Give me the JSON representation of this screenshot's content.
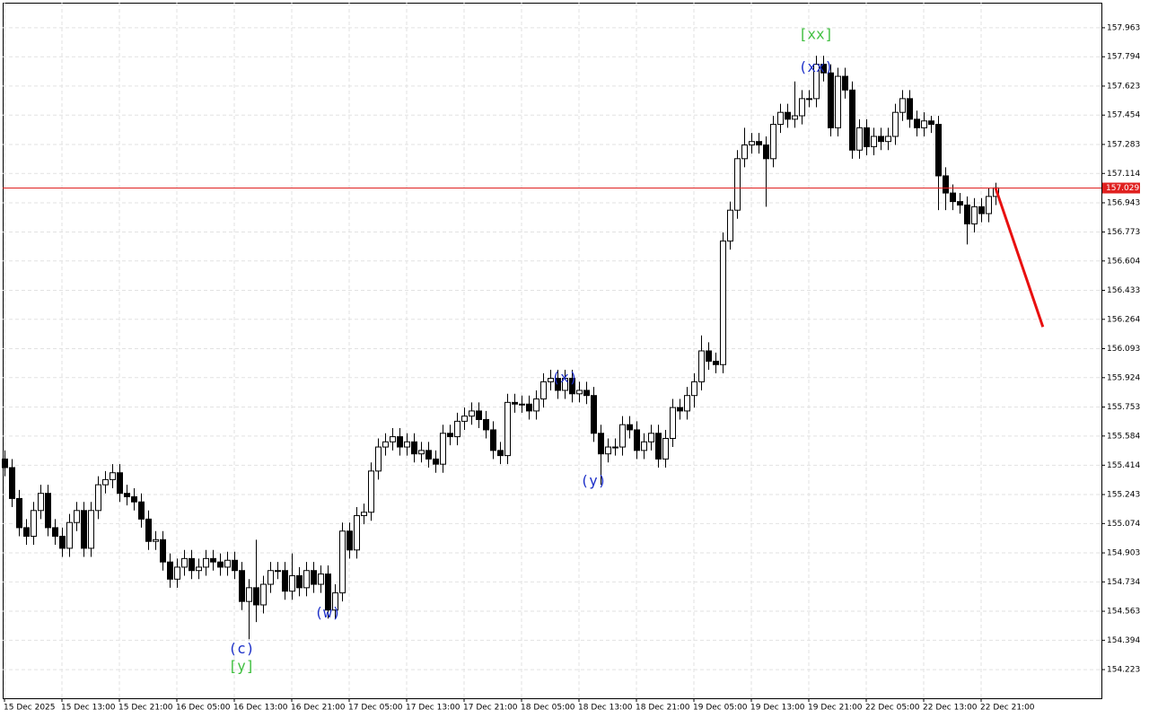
{
  "chart_data": {
    "type": "candlestick",
    "ylim": [
      154.056,
      158.109
    ],
    "yticks": [
      157.963,
      157.794,
      157.623,
      157.454,
      157.283,
      157.114,
      156.943,
      156.773,
      156.604,
      156.433,
      156.264,
      156.093,
      155.924,
      155.753,
      155.584,
      155.414,
      155.243,
      155.074,
      154.903,
      154.734,
      154.563,
      154.394,
      154.223
    ],
    "grid": true,
    "up_color": "#ffffff",
    "down_color": "#000000",
    "outline_color": "#000000",
    "categories": [
      "15 Dec 2025",
      null,
      null,
      null,
      null,
      null,
      null,
      null,
      "15 Dec 13:00",
      null,
      null,
      null,
      null,
      null,
      null,
      null,
      "15 Dec 21:00",
      null,
      null,
      null,
      null,
      null,
      null,
      null,
      "16 Dec 05:00",
      null,
      null,
      null,
      null,
      null,
      null,
      null,
      "16 Dec 13:00",
      null,
      null,
      null,
      null,
      null,
      null,
      null,
      "16 Dec 21:00",
      null,
      null,
      null,
      null,
      null,
      null,
      null,
      "17 Dec 05:00",
      null,
      null,
      null,
      null,
      null,
      null,
      null,
      "17 Dec 13:00",
      null,
      null,
      null,
      null,
      null,
      null,
      null,
      "17 Dec 21:00",
      null,
      null,
      null,
      null,
      null,
      null,
      null,
      "18 Dec 05:00",
      null,
      null,
      null,
      null,
      null,
      null,
      null,
      "18 Dec 13:00",
      null,
      null,
      null,
      null,
      null,
      null,
      null,
      "18 Dec 21:00",
      null,
      null,
      null,
      null,
      null,
      null,
      null,
      "19 Dec 05:00",
      null,
      null,
      null,
      null,
      null,
      null,
      null,
      "19 Dec 13:00",
      null,
      null,
      null,
      null,
      null,
      null,
      null,
      "19 Dec 21:00",
      null,
      null,
      null,
      null,
      null,
      null,
      null,
      "22 Dec 05:00",
      null,
      null,
      null,
      null,
      null,
      null,
      null,
      "22 Dec 13:00",
      null,
      null,
      null,
      null,
      null,
      null,
      null,
      "22 Dec 21:00",
      null,
      null
    ],
    "open": [
      155.45,
      155.4,
      155.22,
      155.05,
      155.0,
      155.15,
      155.25,
      155.05,
      155.0,
      154.93,
      155.08,
      155.15,
      154.93,
      155.15,
      155.3,
      155.33,
      155.37,
      155.25,
      155.23,
      155.2,
      155.1,
      154.97,
      154.98,
      154.85,
      154.75,
      154.82,
      154.87,
      154.8,
      154.82,
      154.87,
      154.85,
      154.82,
      154.86,
      154.8,
      154.62,
      154.7,
      154.6,
      154.72,
      154.8,
      154.8,
      154.68,
      154.77,
      154.7,
      154.8,
      154.72,
      154.78,
      154.57,
      154.67,
      155.03,
      154.92,
      155.12,
      155.14,
      155.38,
      155.52,
      155.55,
      155.58,
      155.52,
      155.55,
      155.48,
      155.5,
      155.45,
      155.42,
      155.6,
      155.58,
      155.67,
      155.7,
      155.73,
      155.68,
      155.62,
      155.5,
      155.47,
      155.78,
      155.77,
      155.77,
      155.73,
      155.8,
      155.9,
      155.92,
      155.85,
      155.92,
      155.83,
      155.85,
      155.82,
      155.6,
      155.48,
      155.52,
      155.52,
      155.65,
      155.62,
      155.5,
      155.55,
      155.6,
      155.45,
      155.57,
      155.75,
      155.73,
      155.82,
      155.9,
      156.08,
      156.02,
      156.0,
      156.72,
      156.9,
      157.2,
      157.28,
      157.3,
      157.28,
      157.2,
      157.4,
      157.47,
      157.43,
      157.45,
      157.55,
      157.55,
      157.75,
      157.7,
      157.38,
      157.68,
      157.6,
      157.25,
      157.38,
      157.27,
      157.33,
      157.3,
      157.33,
      157.47,
      157.55,
      157.43,
      157.38,
      157.42,
      157.4,
      157.1,
      157.0,
      156.95,
      156.93,
      156.82,
      156.92,
      156.88,
      156.98
    ],
    "high": [
      155.5,
      155.45,
      155.27,
      155.1,
      155.2,
      155.3,
      155.3,
      155.1,
      155.05,
      155.13,
      155.2,
      155.2,
      155.2,
      155.35,
      155.38,
      155.42,
      155.42,
      155.3,
      155.28,
      155.25,
      155.15,
      155.03,
      155.03,
      154.9,
      154.87,
      154.92,
      154.92,
      154.87,
      154.92,
      154.92,
      154.9,
      154.91,
      154.91,
      154.85,
      154.75,
      154.98,
      154.77,
      154.85,
      154.85,
      154.85,
      154.9,
      154.82,
      154.85,
      154.85,
      154.83,
      154.83,
      154.72,
      155.08,
      155.08,
      155.17,
      155.19,
      155.43,
      155.57,
      155.6,
      155.63,
      155.63,
      155.6,
      155.6,
      155.55,
      155.55,
      155.5,
      155.65,
      155.65,
      155.72,
      155.75,
      155.78,
      155.78,
      155.73,
      155.67,
      155.55,
      155.83,
      155.83,
      155.82,
      155.82,
      155.85,
      155.95,
      155.97,
      155.97,
      155.97,
      155.97,
      155.9,
      155.9,
      155.87,
      155.65,
      155.57,
      155.57,
      155.7,
      155.7,
      155.67,
      155.6,
      155.65,
      155.65,
      155.62,
      155.8,
      155.8,
      155.87,
      155.95,
      156.17,
      156.13,
      156.07,
      156.77,
      156.95,
      157.25,
      157.38,
      157.35,
      157.35,
      157.33,
      157.45,
      157.52,
      157.52,
      157.65,
      157.6,
      157.6,
      157.8,
      157.8,
      157.75,
      157.73,
      157.73,
      157.65,
      157.43,
      157.43,
      157.38,
      157.38,
      157.38,
      157.52,
      157.6,
      157.6,
      157.48,
      157.47,
      157.45,
      157.45,
      157.15,
      157.05,
      157.0,
      156.98,
      156.97,
      156.97,
      157.03,
      157.06
    ],
    "low": [
      155.35,
      155.17,
      155.0,
      154.95,
      154.95,
      155.1,
      155.0,
      154.95,
      154.88,
      154.88,
      155.03,
      154.88,
      154.88,
      155.1,
      155.25,
      155.28,
      155.2,
      155.18,
      155.15,
      155.05,
      154.92,
      154.92,
      154.8,
      154.7,
      154.7,
      154.77,
      154.75,
      154.75,
      154.77,
      154.8,
      154.77,
      154.77,
      154.75,
      154.57,
      154.4,
      154.5,
      154.55,
      154.67,
      154.75,
      154.63,
      154.63,
      154.65,
      154.65,
      154.67,
      154.67,
      154.52,
      154.52,
      154.62,
      154.87,
      154.87,
      155.07,
      155.09,
      155.33,
      155.47,
      155.5,
      155.47,
      155.47,
      155.43,
      155.43,
      155.4,
      155.37,
      155.37,
      155.53,
      155.53,
      155.62,
      155.65,
      155.63,
      155.57,
      155.45,
      155.42,
      155.42,
      155.72,
      155.72,
      155.68,
      155.68,
      155.75,
      155.85,
      155.8,
      155.8,
      155.78,
      155.78,
      155.77,
      155.55,
      155.3,
      155.43,
      155.47,
      155.47,
      155.57,
      155.45,
      155.45,
      155.5,
      155.4,
      155.4,
      155.52,
      155.68,
      155.68,
      155.75,
      155.85,
      155.97,
      155.95,
      155.95,
      156.67,
      156.85,
      157.15,
      157.23,
      157.23,
      156.92,
      157.15,
      157.35,
      157.38,
      157.38,
      157.4,
      157.5,
      157.5,
      157.65,
      157.33,
      157.33,
      157.55,
      157.2,
      157.2,
      157.22,
      157.22,
      157.25,
      157.25,
      157.28,
      157.42,
      157.38,
      157.33,
      157.33,
      157.35,
      156.9,
      156.9,
      156.9,
      156.88,
      156.7,
      156.77,
      156.83,
      156.83,
      156.93
    ],
    "close": [
      155.4,
      155.22,
      155.05,
      155.0,
      155.15,
      155.25,
      155.05,
      155.0,
      154.93,
      155.08,
      155.15,
      154.93,
      155.15,
      155.3,
      155.33,
      155.37,
      155.25,
      155.23,
      155.2,
      155.1,
      154.97,
      154.98,
      154.85,
      154.75,
      154.82,
      154.87,
      154.8,
      154.82,
      154.87,
      154.85,
      154.82,
      154.86,
      154.8,
      154.62,
      154.7,
      154.6,
      154.72,
      154.8,
      154.8,
      154.68,
      154.77,
      154.7,
      154.8,
      154.72,
      154.78,
      154.57,
      154.67,
      155.03,
      154.92,
      155.12,
      155.14,
      155.38,
      155.52,
      155.55,
      155.58,
      155.52,
      155.55,
      155.48,
      155.5,
      155.45,
      155.42,
      155.6,
      155.58,
      155.67,
      155.7,
      155.73,
      155.68,
      155.62,
      155.5,
      155.47,
      155.78,
      155.77,
      155.77,
      155.73,
      155.8,
      155.9,
      155.92,
      155.85,
      155.92,
      155.83,
      155.85,
      155.82,
      155.6,
      155.48,
      155.52,
      155.52,
      155.65,
      155.62,
      155.5,
      155.55,
      155.6,
      155.45,
      155.57,
      155.75,
      155.73,
      155.82,
      155.9,
      156.08,
      156.02,
      156.0,
      156.72,
      156.9,
      157.2,
      157.28,
      157.3,
      157.28,
      157.2,
      157.4,
      157.47,
      157.43,
      157.45,
      157.55,
      157.55,
      157.75,
      157.7,
      157.38,
      157.68,
      157.6,
      157.25,
      157.38,
      157.27,
      157.33,
      157.3,
      157.33,
      157.47,
      157.55,
      157.43,
      157.38,
      157.42,
      157.4,
      157.1,
      157.0,
      156.95,
      156.93,
      156.82,
      156.92,
      156.88,
      156.98,
      157.03
    ],
    "current_price": 157.029,
    "current_price_color": "#e0201f",
    "forecast": {
      "x": [
        138,
        144.6
      ],
      "y": [
        157.03,
        156.22
      ],
      "color": "#e81010"
    },
    "annotations": [
      {
        "text": "[xx]",
        "x": 113,
        "y": 157.92,
        "color": "#3fbf3f"
      },
      {
        "text": "(xx)",
        "x": 113,
        "y": 157.73,
        "color": "#1c2fc8"
      },
      {
        "text": "(x)",
        "x": 78,
        "y": 155.92,
        "color": "#1c2fc8"
      },
      {
        "text": "(y)",
        "x": 82,
        "y": 155.32,
        "color": "#1c2fc8"
      },
      {
        "text": "(w)",
        "x": 45,
        "y": 154.55,
        "color": "#1c2fc8"
      },
      {
        "text": "(c)",
        "x": 33,
        "y": 154.34,
        "color": "#1c2fc8"
      },
      {
        "text": "[y]",
        "x": 33,
        "y": 154.24,
        "color": "#3fbf3f"
      }
    ]
  }
}
